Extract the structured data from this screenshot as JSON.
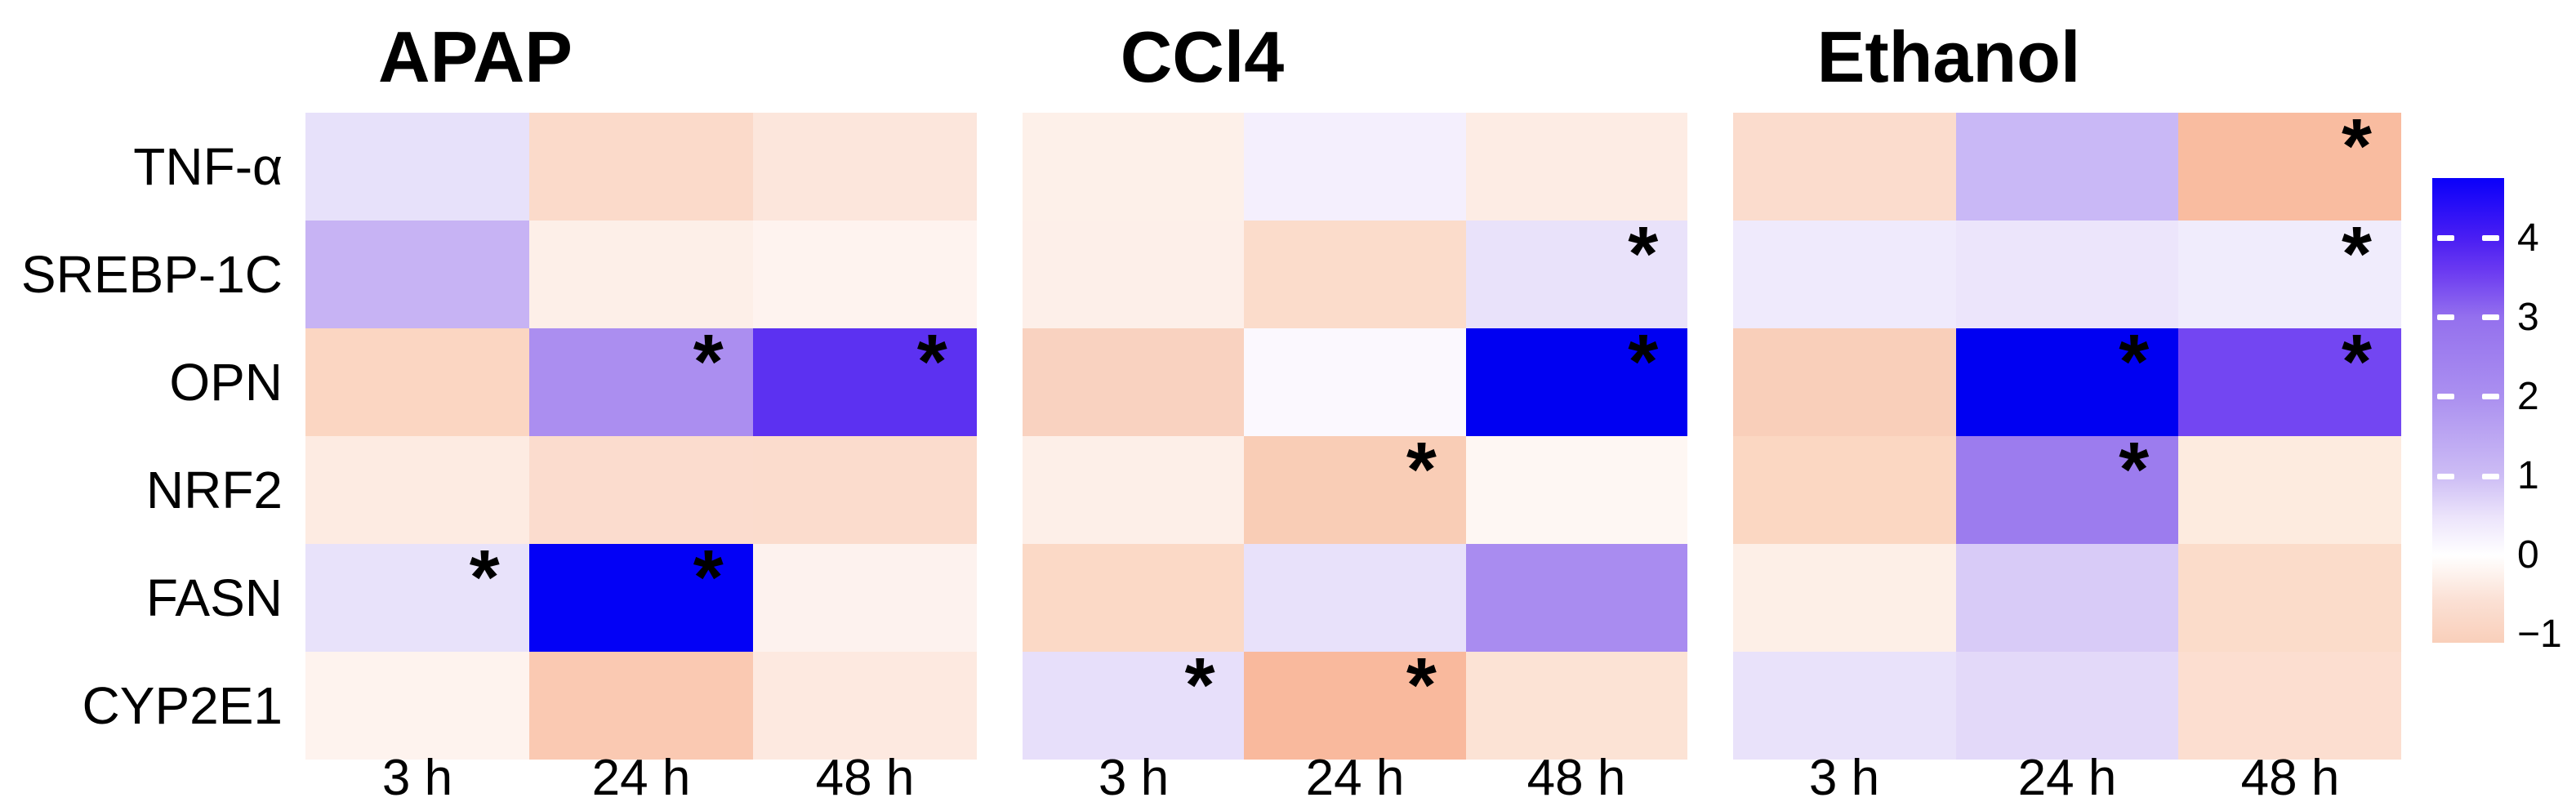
{
  "chart_data": {
    "type": "heatmap",
    "rows": [
      "TNF-α",
      "SREBP-1C",
      "OPN",
      "NRF2",
      "FASN",
      "CYP2E1"
    ],
    "columns": [
      "3 h",
      "24 h",
      "48 h"
    ],
    "sig_symbol": "*",
    "panels": [
      {
        "title": "APAP",
        "columns": [
          "3 h",
          "24 h",
          "48 h"
        ],
        "cells": [
          [
            {
              "value": 0.5,
              "color": "#e7e1fa",
              "significant": false
            },
            {
              "value": -0.75,
              "color": "#fbdaca",
              "significant": false
            },
            {
              "value": -0.45,
              "color": "#fce6dc",
              "significant": false
            }
          ],
          [
            {
              "value": 1.5,
              "color": "#c7b3f4",
              "significant": false
            },
            {
              "value": -0.25,
              "color": "#fdefe8",
              "significant": false
            },
            {
              "value": -0.15,
              "color": "#fef3ef",
              "significant": false
            }
          ],
          [
            {
              "value": -0.8,
              "color": "#fbd6c2",
              "significant": false
            },
            {
              "value": 2.1,
              "color": "#ab8ef0",
              "significant": true
            },
            {
              "value": 3.6,
              "color": "#5c31f1",
              "significant": true
            }
          ],
          [
            {
              "value": -0.35,
              "color": "#fdebe2",
              "significant": false
            },
            {
              "value": -0.65,
              "color": "#fbdcce",
              "significant": false
            },
            {
              "value": -0.65,
              "color": "#fbdccd",
              "significant": false
            }
          ],
          [
            {
              "value": 0.5,
              "color": "#e8e2fa",
              "significant": true
            },
            {
              "value": 4.8,
              "color": "#0301f6",
              "significant": true
            },
            {
              "value": -0.15,
              "color": "#fdf2ee",
              "significant": false
            }
          ],
          [
            {
              "value": -0.15,
              "color": "#fef3ee",
              "significant": false
            },
            {
              "value": -0.95,
              "color": "#fac9b2",
              "significant": false
            },
            {
              "value": -0.4,
              "color": "#fde9e0",
              "significant": false
            }
          ]
        ]
      },
      {
        "title": "CCl4",
        "columns": [
          "3 h",
          "24 h",
          "48 h"
        ],
        "cells": [
          [
            {
              "value": -0.25,
              "color": "#fdf0e9",
              "significant": false
            },
            {
              "value": 0.25,
              "color": "#f4effd",
              "significant": false
            },
            {
              "value": -0.35,
              "color": "#fdece4",
              "significant": false
            }
          ],
          [
            {
              "value": -0.25,
              "color": "#fdefe9",
              "significant": false
            },
            {
              "value": -0.65,
              "color": "#fbdccb",
              "significant": false
            },
            {
              "value": 0.5,
              "color": "#e9e2fa",
              "significant": true
            }
          ],
          [
            {
              "value": -0.8,
              "color": "#f9d2c0",
              "significant": false
            },
            {
              "value": 0.1,
              "color": "#fbf8fe",
              "significant": false
            },
            {
              "value": 4.8,
              "color": "#0000f2",
              "significant": true
            }
          ],
          [
            {
              "value": -0.25,
              "color": "#fdefe8",
              "significant": false
            },
            {
              "value": -0.9,
              "color": "#f9cdb6",
              "significant": true
            },
            {
              "value": -0.1,
              "color": "#fef7f3",
              "significant": false
            }
          ],
          [
            {
              "value": -0.65,
              "color": "#fbd9c6",
              "significant": false
            },
            {
              "value": 0.5,
              "color": "#e8e1fa",
              "significant": false
            },
            {
              "value": 2.2,
              "color": "#a98cf0",
              "significant": false
            }
          ],
          [
            {
              "value": 0.55,
              "color": "#e7dffa",
              "significant": true
            },
            {
              "value": -1.05,
              "color": "#f9b99d",
              "significant": true
            },
            {
              "value": -0.5,
              "color": "#fce3d5",
              "significant": false
            }
          ]
        ]
      },
      {
        "title": "Ethanol",
        "columns": [
          "3 h",
          "24 h",
          "48 h"
        ],
        "cells": [
          [
            {
              "value": -0.6,
              "color": "#fbdccd",
              "significant": false
            },
            {
              "value": 1.4,
              "color": "#c9b8f6",
              "significant": false
            },
            {
              "value": -1.1,
              "color": "#f9bca0",
              "significant": true
            }
          ],
          [
            {
              "value": 0.4,
              "color": "#efeafc",
              "significant": false
            },
            {
              "value": 0.45,
              "color": "#ece5fb",
              "significant": false
            },
            {
              "value": 0.35,
              "color": "#f0ecfc",
              "significant": true
            }
          ],
          [
            {
              "value": -0.85,
              "color": "#f9cfba",
              "significant": false
            },
            {
              "value": 4.8,
              "color": "#0000f2",
              "significant": true
            },
            {
              "value": 3.3,
              "color": "#7346f2",
              "significant": true
            }
          ],
          [
            {
              "value": -0.7,
              "color": "#fbd7c2",
              "significant": false
            },
            {
              "value": 2.4,
              "color": "#9c7cee",
              "significant": true
            },
            {
              "value": -0.35,
              "color": "#fdebdf",
              "significant": false
            }
          ],
          [
            {
              "value": -0.25,
              "color": "#fdefe7",
              "significant": false
            },
            {
              "value": 1.1,
              "color": "#d8cbf7",
              "significant": false
            },
            {
              "value": -0.6,
              "color": "#fbdcca",
              "significant": false
            }
          ],
          [
            {
              "value": 0.5,
              "color": "#e9e2fa",
              "significant": false
            },
            {
              "value": 0.7,
              "color": "#e3d9f9",
              "significant": false
            },
            {
              "value": -0.55,
              "color": "#fcded0",
              "significant": false
            }
          ]
        ]
      }
    ],
    "colorbar": {
      "domain": [
        -1.1,
        4.76
      ],
      "ticks": [
        {
          "value": 4,
          "label": "4",
          "dash": true
        },
        {
          "value": 3,
          "label": "3",
          "dash": true
        },
        {
          "value": 2,
          "label": "2",
          "dash": true
        },
        {
          "value": 1,
          "label": "1",
          "dash": true
        },
        {
          "value": 0,
          "label": "0",
          "dash": false
        },
        {
          "value": -1,
          "label": "−1",
          "dash": false
        }
      ],
      "gradient_stops_bottom_to_top": [
        {
          "pos": 0.0,
          "color": "#f9cfba"
        },
        {
          "pos": 0.09,
          "color": "#fbe0d4"
        },
        {
          "pos": 0.188,
          "color": "#ffffff"
        },
        {
          "pos": 0.27,
          "color": "#ece4fb"
        },
        {
          "pos": 0.358,
          "color": "#cdbdf5"
        },
        {
          "pos": 0.529,
          "color": "#ab90f0"
        },
        {
          "pos": 0.7,
          "color": "#9470ee"
        },
        {
          "pos": 0.8,
          "color": "#6b3af1"
        },
        {
          "pos": 0.87,
          "color": "#4a1ef3"
        },
        {
          "pos": 1.0,
          "color": "#0a00fa"
        }
      ]
    }
  }
}
